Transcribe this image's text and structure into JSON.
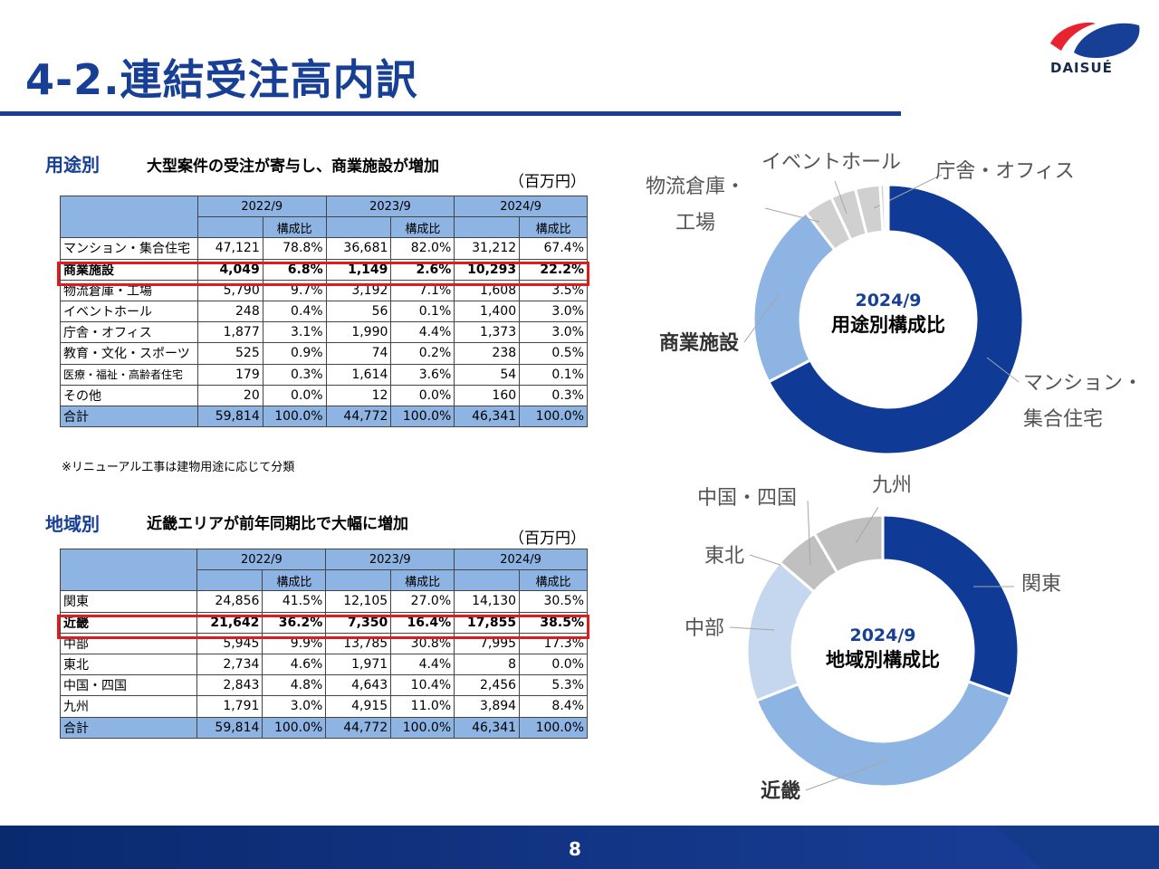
{
  "title": "4-2.連結受注高内訳",
  "logo_text": "DAISUÉ",
  "page_number": "8",
  "usage": {
    "label": "用途別",
    "headline": "大型案件の受注が寄与し、商業施設が増加",
    "unit": "（百万円）",
    "years": [
      "2022/9",
      "2023/9",
      "2024/9"
    ],
    "ratio_label": "構成比",
    "rows": [
      {
        "name": "マンション・集合住宅",
        "c": [
          "47,121",
          "78.8%",
          "36,681",
          "82.0%",
          "31,212",
          "67.4%"
        ]
      },
      {
        "name": "商業施設",
        "c": [
          "4,049",
          "6.8%",
          "1,149",
          "2.6%",
          "10,293",
          "22.2%"
        ]
      },
      {
        "name": "物流倉庫・工場",
        "c": [
          "5,790",
          "9.7%",
          "3,192",
          "7.1%",
          "1,608",
          "3.5%"
        ]
      },
      {
        "name": "イベントホール",
        "c": [
          "248",
          "0.4%",
          "56",
          "0.1%",
          "1,400",
          "3.0%"
        ]
      },
      {
        "name": "庁舎・オフィス",
        "c": [
          "1,877",
          "3.1%",
          "1,990",
          "4.4%",
          "1,373",
          "3.0%"
        ]
      },
      {
        "name": "教育・文化・スポーツ",
        "c": [
          "525",
          "0.9%",
          "74",
          "0.2%",
          "238",
          "0.5%"
        ]
      },
      {
        "name": "医療・福祉・高齢者住宅",
        "c": [
          "179",
          "0.3%",
          "1,614",
          "3.6%",
          "54",
          "0.1%"
        ]
      },
      {
        "name": "その他",
        "c": [
          "20",
          "0.0%",
          "12",
          "0.0%",
          "160",
          "0.3%"
        ]
      }
    ],
    "total": {
      "name": "合計",
      "c": [
        "59,814",
        "100.0%",
        "44,772",
        "100.0%",
        "46,341",
        "100.0%"
      ]
    },
    "note": "※リニューアル工事は建物用途に応じて分類"
  },
  "region": {
    "label": "地域別",
    "headline": "近畿エリアが前年同期比で大幅に増加",
    "unit": "（百万円）",
    "years": [
      "2022/9",
      "2023/9",
      "2024/9"
    ],
    "ratio_label": "構成比",
    "rows": [
      {
        "name": "関東",
        "c": [
          "24,856",
          "41.5%",
          "12,105",
          "27.0%",
          "14,130",
          "30.5%"
        ]
      },
      {
        "name": "近畿",
        "c": [
          "21,642",
          "36.2%",
          "7,350",
          "16.4%",
          "17,855",
          "38.5%"
        ]
      },
      {
        "name": "中部",
        "c": [
          "5,945",
          "9.9%",
          "13,785",
          "30.8%",
          "7,995",
          "17.3%"
        ]
      },
      {
        "name": "東北",
        "c": [
          "2,734",
          "4.6%",
          "1,971",
          "4.4%",
          "8",
          "0.0%"
        ]
      },
      {
        "name": "中国・四国",
        "c": [
          "2,843",
          "4.8%",
          "4,643",
          "10.4%",
          "2,456",
          "5.3%"
        ]
      },
      {
        "name": "九州",
        "c": [
          "1,791",
          "3.0%",
          "4,915",
          "11.0%",
          "3,894",
          "8.4%"
        ]
      }
    ],
    "total": {
      "name": "合計",
      "c": [
        "59,814",
        "100.0%",
        "44,772",
        "100.0%",
        "46,341",
        "100.0%"
      ]
    }
  },
  "chart_data": [
    {
      "type": "pie",
      "title": "2024/9",
      "subtitle": "用途別構成比",
      "categories": [
        "マンション・集合住宅",
        "商業施設",
        "物流倉庫・工場",
        "イベントホール",
        "庁舎・オフィス",
        "教育・文化・スポーツ",
        "医療・福祉・高齢者住宅",
        "その他"
      ],
      "values": [
        31212,
        10293,
        1608,
        1400,
        1373,
        238,
        54,
        160
      ],
      "colors": [
        "#0f3b97",
        "#8eb4e3",
        "#d0d0d0",
        "#d0d0d0",
        "#d0d0d0",
        "#d0d0d0",
        "#d0d0d0",
        "#d0d0d0"
      ],
      "labels": [
        "マンション・\n集合住宅",
        "商業施設",
        "物流倉庫・\n工場",
        "イベントホール",
        "庁舎・オフィス",
        "",
        "",
        ""
      ]
    },
    {
      "type": "pie",
      "title": "2024/9",
      "subtitle": "地域別構成比",
      "categories": [
        "関東",
        "近畿",
        "中部",
        "東北",
        "中国・四国",
        "九州"
      ],
      "values": [
        14130,
        17855,
        7995,
        8,
        2456,
        3894
      ],
      "colors": [
        "#0f3b97",
        "#8eb4e3",
        "#c5d7ee",
        "#d0d0d0",
        "#c0c0c0",
        "#c0c0c0"
      ],
      "labels": [
        "関東",
        "近畿",
        "中部",
        "東北",
        "中国・四国",
        "九州"
      ]
    }
  ]
}
